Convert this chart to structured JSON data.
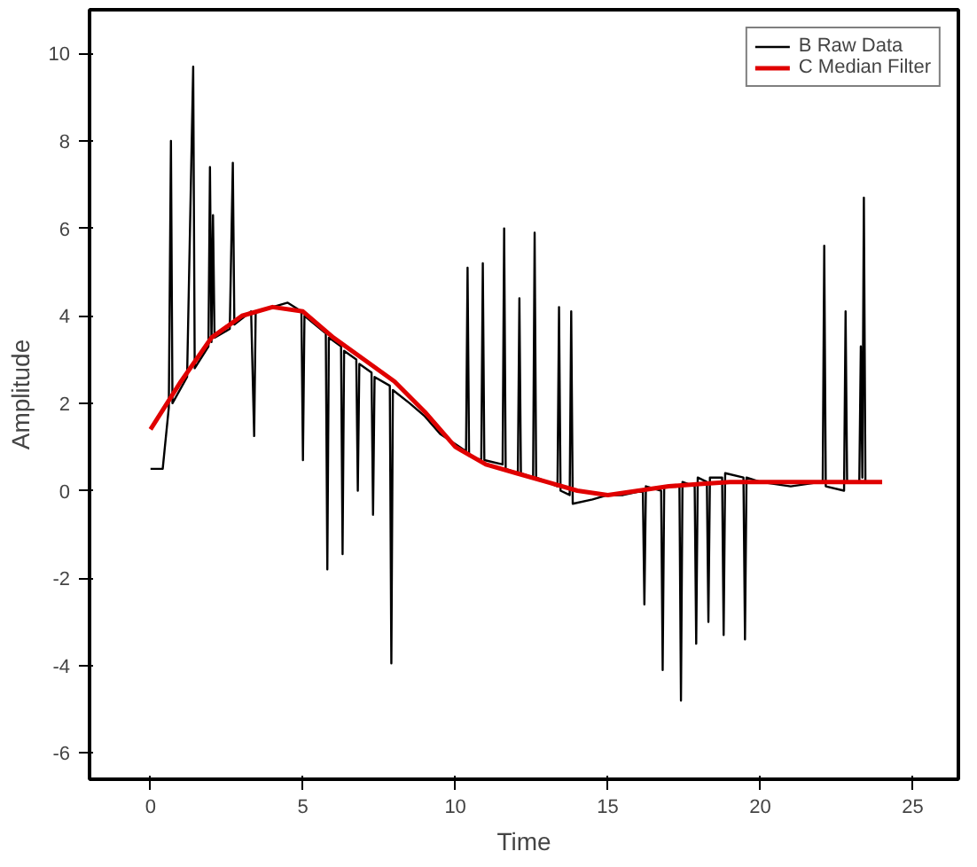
{
  "chart_data": {
    "type": "line",
    "xlabel": "Time",
    "ylabel": "Amplitude",
    "xlim": [
      -2,
      26.5
    ],
    "ylim": [
      -6.6,
      11
    ],
    "xticks": [
      0,
      5,
      10,
      15,
      20,
      25
    ],
    "yticks": [
      -6,
      -4,
      -2,
      0,
      2,
      4,
      6,
      8,
      10
    ],
    "grid": false,
    "legend": "top right",
    "marker": "none",
    "line_style": "solid",
    "series": [
      {
        "name": "B Raw Data",
        "color": "#000000",
        "x": [
          0.0,
          0.4,
          0.6,
          0.67,
          0.72,
          1.2,
          1.4,
          1.45,
          1.9,
          1.95,
          2.0,
          2.05,
          2.1,
          2.6,
          2.7,
          2.75,
          3.3,
          3.4,
          3.45,
          4.0,
          4.5,
          4.95,
          5.0,
          5.05,
          5.75,
          5.8,
          5.85,
          6.25,
          6.3,
          6.35,
          6.75,
          6.8,
          6.85,
          7.25,
          7.3,
          7.35,
          7.85,
          7.9,
          7.95,
          8.5,
          9.0,
          9.5,
          10.35,
          10.4,
          10.45,
          10.85,
          10.9,
          10.95,
          11.55,
          11.6,
          11.65,
          12.05,
          12.1,
          12.15,
          12.55,
          12.6,
          12.65,
          13.35,
          13.4,
          13.45,
          13.75,
          13.8,
          13.85,
          14.5,
          15.0,
          15.5,
          16.15,
          16.2,
          16.25,
          16.75,
          16.8,
          16.85,
          17.35,
          17.4,
          17.45,
          17.85,
          17.9,
          17.95,
          18.25,
          18.3,
          18.35,
          18.75,
          18.8,
          18.85,
          19.45,
          19.5,
          19.55,
          20.0,
          21.0,
          22.0,
          22.05,
          22.1,
          22.15,
          22.75,
          22.8,
          22.85,
          23.25,
          23.3,
          23.35,
          23.4,
          23.45
        ],
        "values": [
          0.5,
          0.5,
          1.9,
          8.0,
          2.0,
          2.6,
          9.7,
          2.8,
          3.3,
          7.4,
          3.4,
          6.3,
          3.5,
          3.7,
          7.5,
          3.8,
          4.1,
          1.25,
          4.1,
          4.2,
          4.3,
          4.1,
          0.7,
          4.0,
          3.6,
          -1.8,
          3.5,
          3.3,
          -1.45,
          3.2,
          3.0,
          0.0,
          2.9,
          2.7,
          -0.55,
          2.6,
          2.4,
          -3.95,
          2.3,
          2.0,
          1.7,
          1.3,
          0.9,
          5.1,
          0.8,
          0.7,
          5.2,
          0.7,
          0.6,
          6.0,
          0.5,
          0.4,
          4.4,
          0.4,
          0.3,
          5.9,
          0.3,
          0.1,
          4.2,
          0.0,
          -0.1,
          4.1,
          -0.3,
          -0.2,
          -0.1,
          -0.1,
          0.0,
          -2.6,
          0.1,
          0.0,
          -4.1,
          0.1,
          0.1,
          -4.8,
          0.2,
          0.1,
          -3.5,
          0.3,
          0.2,
          -3.0,
          0.3,
          0.3,
          -3.3,
          0.4,
          0.3,
          -3.4,
          0.3,
          0.2,
          0.1,
          0.2,
          0.2,
          5.6,
          0.1,
          0.0,
          4.1,
          0.2,
          0.2,
          3.3,
          0.3,
          6.7,
          0.2
        ]
      },
      {
        "name": "C Median Filter",
        "color": "#e00000",
        "x": [
          0,
          1,
          2,
          3,
          4,
          5,
          6,
          7,
          8,
          9,
          10,
          11,
          12,
          13,
          14,
          15,
          16,
          17,
          18,
          19,
          20,
          21,
          22,
          23,
          24
        ],
        "values": [
          1.4,
          2.5,
          3.5,
          4.0,
          4.2,
          4.1,
          3.5,
          3.0,
          2.5,
          1.8,
          1.0,
          0.6,
          0.4,
          0.2,
          0.0,
          -0.1,
          0.0,
          0.1,
          0.15,
          0.2,
          0.2,
          0.2,
          0.2,
          0.2,
          0.2
        ]
      }
    ]
  }
}
